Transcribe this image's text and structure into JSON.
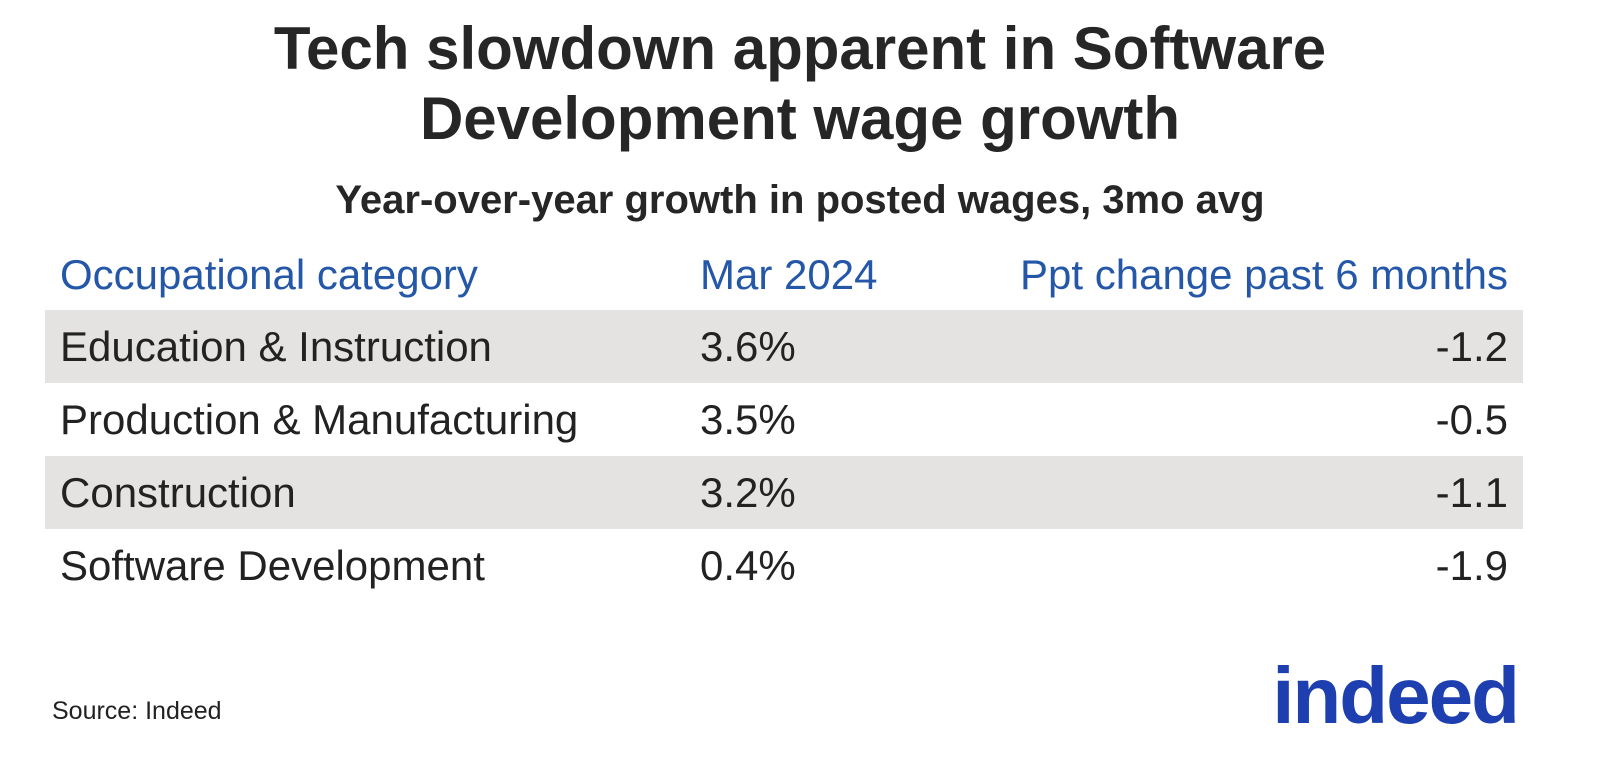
{
  "title": "Tech slowdown apparent in Software Development wage growth",
  "subtitle": "Year-over-year growth in posted wages, 3mo avg",
  "table": {
    "header": [
      "Occupational category",
      "Mar 2024",
      "Ppt change past 6 months"
    ],
    "rows": [
      [
        "Education & Instruction",
        "3.6%",
        "-1.2"
      ],
      [
        "Production & Manufacturing",
        "3.5%",
        "-0.5"
      ],
      [
        "Construction",
        "3.2%",
        "-1.1"
      ],
      [
        "Software Development",
        "0.4%",
        "-1.9"
      ]
    ]
  },
  "source": "Source: Indeed",
  "logo": "indeed"
}
